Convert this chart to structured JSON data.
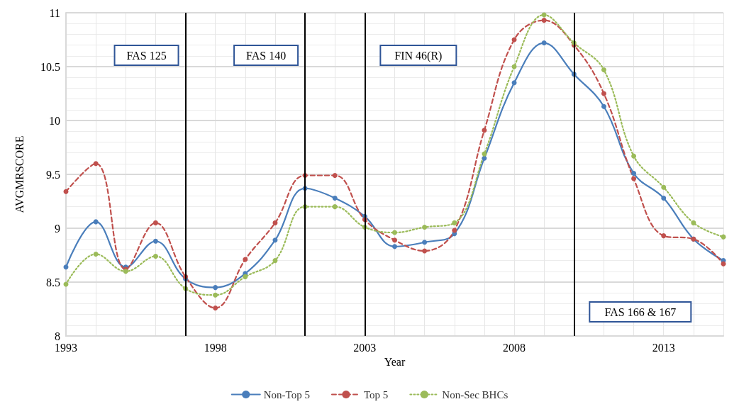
{
  "chart_data": {
    "type": "line",
    "xlabel": "Year",
    "ylabel": "AVGMRSCORE",
    "x": [
      1993,
      1994,
      1995,
      1996,
      1997,
      1998,
      1999,
      2000,
      2001,
      2002,
      2003,
      2004,
      2005,
      2006,
      2007,
      2008,
      2009,
      2010,
      2011,
      2012,
      2013,
      2014,
      2015
    ],
    "series": [
      {
        "name": "Non-Top 5",
        "color": "#4a7ebb",
        "line_style": "solid",
        "values": [
          8.64,
          9.06,
          8.64,
          8.88,
          8.53,
          8.45,
          8.58,
          8.89,
          9.37,
          9.28,
          9.11,
          8.83,
          8.87,
          8.95,
          9.65,
          10.35,
          10.72,
          10.43,
          10.13,
          9.51,
          9.28,
          8.9,
          8.7
        ]
      },
      {
        "name": "Top 5",
        "color": "#c0504d",
        "line_style": "dashed",
        "values": [
          9.34,
          9.6,
          8.62,
          9.05,
          8.55,
          8.26,
          8.71,
          9.05,
          9.49,
          9.49,
          9.08,
          8.89,
          8.79,
          8.98,
          9.91,
          10.75,
          10.93,
          10.7,
          10.25,
          9.46,
          8.93,
          8.9,
          8.67
        ]
      },
      {
        "name": "Non-Sec BHCs",
        "color": "#9bbb59",
        "line_style": "dotted",
        "values": [
          8.48,
          8.76,
          8.6,
          8.74,
          8.44,
          8.38,
          8.55,
          8.7,
          9.2,
          9.2,
          9.01,
          8.96,
          9.01,
          9.05,
          9.69,
          10.5,
          10.98,
          10.72,
          10.47,
          9.67,
          9.38,
          9.05,
          8.92
        ]
      }
    ],
    "xlim": [
      1993,
      2015
    ],
    "xticks": [
      1993,
      1998,
      2003,
      2008,
      2013
    ],
    "ylim": [
      8,
      11
    ],
    "yticks": [
      8,
      8.5,
      9,
      9.5,
      10,
      10.5,
      11
    ],
    "ref_lines": [
      {
        "axis": "x",
        "value": 1997,
        "label": "FAS 125",
        "color": "#000000"
      },
      {
        "axis": "x",
        "value": 2001,
        "label": "FAS 140",
        "color": "#000000"
      },
      {
        "axis": "x",
        "value": 2003,
        "label": "FIN 46(R)",
        "color": "#000000"
      },
      {
        "axis": "x",
        "value": 2010,
        "label": "FAS 166 & 167",
        "color": "#000000"
      }
    ],
    "grid": true,
    "legend": "bottom",
    "marker": "circle"
  }
}
